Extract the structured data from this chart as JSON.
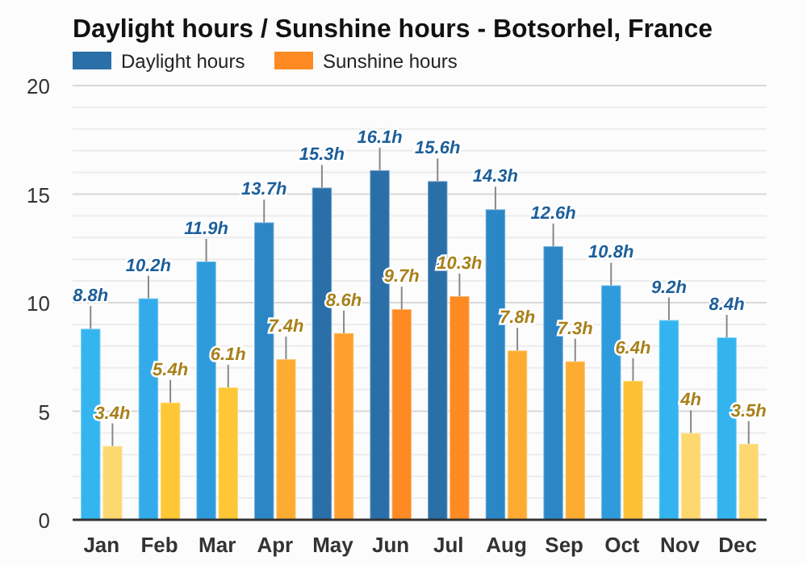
{
  "chart_data": {
    "type": "bar",
    "title": "Daylight hours / Sunshine hours - Botsorhel, France",
    "categories": [
      "Jan",
      "Feb",
      "Mar",
      "Apr",
      "May",
      "Jun",
      "Jul",
      "Aug",
      "Sep",
      "Oct",
      "Nov",
      "Dec"
    ],
    "series": [
      {
        "name": "Daylight hours",
        "color": "#2a6fa8",
        "values": [
          8.8,
          10.2,
          11.9,
          13.7,
          15.3,
          16.1,
          15.6,
          14.3,
          12.6,
          10.8,
          9.2,
          8.4
        ],
        "colors": [
          "#35b5f0",
          "#33abea",
          "#2e9bdc",
          "#2b86c6",
          "#2a6fa8",
          "#2a6fa8",
          "#2a6fa8",
          "#2b86c6",
          "#2b86c6",
          "#2e9bdc",
          "#33b4ef",
          "#33b4ef"
        ],
        "value_labels": [
          "8.8h",
          "10.2h",
          "11.9h",
          "13.7h",
          "15.3h",
          "16.1h",
          "15.6h",
          "14.3h",
          "12.6h",
          "10.8h",
          "9.2h",
          "8.4h"
        ]
      },
      {
        "name": "Sunshine hours",
        "color": "#fd8a22",
        "values": [
          3.4,
          5.4,
          6.1,
          7.4,
          8.6,
          9.7,
          10.3,
          7.8,
          7.3,
          6.4,
          4,
          3.5
        ],
        "colors": [
          "#fcd86f",
          "#fdc736",
          "#fdc736",
          "#fdac32",
          "#fd9e2d",
          "#fd8a22",
          "#fd8a22",
          "#fdac32",
          "#fdac32",
          "#fdbf34",
          "#fcd86f",
          "#fcd86f"
        ],
        "value_labels": [
          "3.4h",
          "5.4h",
          "6.1h",
          "7.4h",
          "8.6h",
          "9.7h",
          "10.3h",
          "7.8h",
          "7.3h",
          "6.4h",
          "4h",
          "3.5h"
        ]
      }
    ],
    "ylim": [
      0,
      20
    ],
    "yticks": [
      0,
      {
        "value": 1,
        "label": null
      },
      {
        "value": 2,
        "label": null
      },
      {
        "value": 3,
        "label": null
      },
      {
        "value": 4,
        "label": null
      },
      5,
      {
        "value": 6,
        "label": null
      },
      {
        "value": 7,
        "label": null
      },
      {
        "value": 8,
        "label": null
      },
      {
        "value": 9,
        "label": null
      },
      10,
      {
        "value": 11,
        "label": null
      },
      {
        "value": 12,
        "label": null
      },
      {
        "value": 13,
        "label": null
      },
      {
        "value": 14,
        "label": null
      },
      15,
      {
        "value": 16,
        "label": null
      },
      {
        "value": 17,
        "label": null
      },
      {
        "value": 18,
        "label": null
      },
      {
        "value": 19,
        "label": null
      },
      20
    ],
    "grid": "y",
    "legend": "top left"
  }
}
